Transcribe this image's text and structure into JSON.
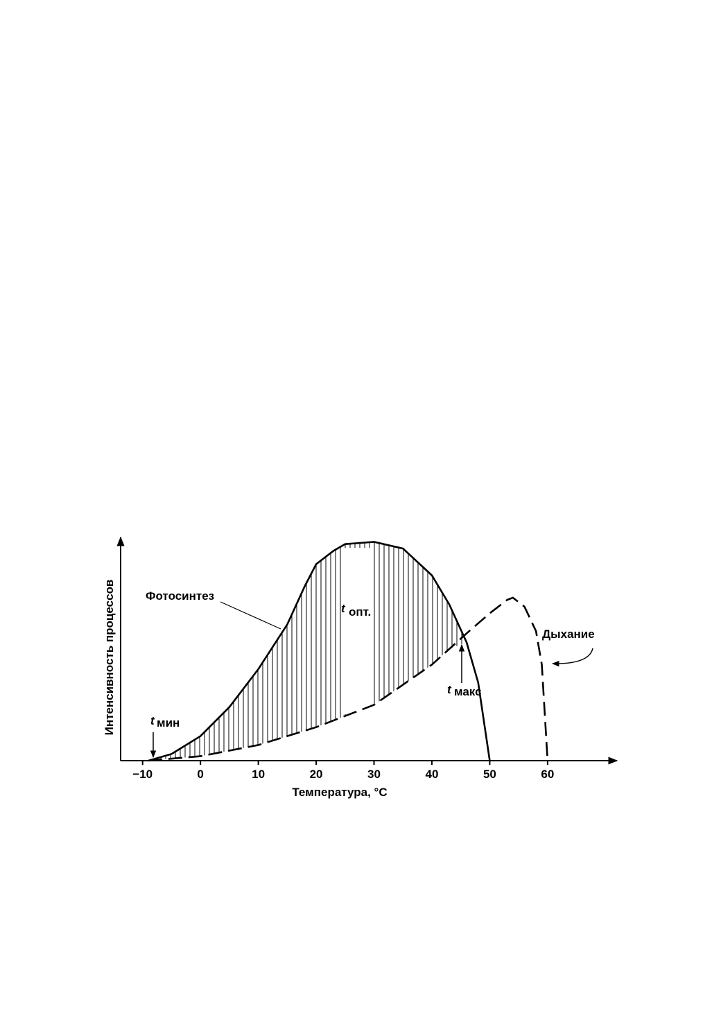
{
  "chart_data": {
    "type": "line",
    "xlabel": "Температура, °C",
    "ylabel": "Интенсивность процессов",
    "x": [
      -9,
      -5,
      0,
      5,
      10,
      15,
      18,
      20,
      23,
      25,
      30,
      35,
      40,
      43,
      46,
      48,
      50
    ],
    "series": [
      {
        "name": "Фотосинтез",
        "color": "#000000",
        "dash": false,
        "x": [
          -9,
          -5,
          0,
          5,
          10,
          15,
          18,
          20,
          23,
          25,
          30,
          35,
          40,
          43,
          46,
          48,
          50
        ],
        "values": [
          0,
          3,
          11,
          24,
          41,
          61,
          78,
          88,
          94,
          97,
          98,
          95,
          83,
          70,
          53,
          35,
          0
        ]
      },
      {
        "name": "Дыхание",
        "color": "#000000",
        "dash": true,
        "x": [
          -9,
          0,
          10,
          20,
          30,
          40,
          46,
          50,
          53,
          54,
          56,
          58,
          59,
          60
        ],
        "values": [
          0,
          2,
          7,
          15,
          25,
          43,
          57,
          66,
          72,
          73,
          69,
          58,
          43,
          0
        ]
      }
    ],
    "xlim": [
      -13.8,
      72
    ],
    "ylim": [
      0,
      100
    ],
    "xticks": [
      {
        "value": -10,
        "label": "−10"
      },
      0,
      10,
      20,
      30,
      40,
      50,
      60
    ],
    "annotations": [
      {
        "text": "t",
        "sub": "мин"
      },
      {
        "text": "t",
        "sub": "опт."
      },
      {
        "text": "t",
        "sub": "макс"
      }
    ]
  }
}
